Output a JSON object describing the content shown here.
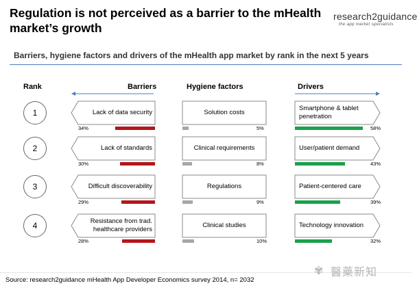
{
  "title": "Regulation is not perceived as a barrier to the mHealth market’s growth",
  "logo": {
    "name": "research2guidance",
    "tagline": "the app market specialists"
  },
  "chart_data": {
    "type": "table",
    "title": "Barriers, hygiene factors and drivers of the mHealth app market by rank in the next 5 years",
    "columns": {
      "rank": "Rank",
      "barriers": "Barriers",
      "hygiene": "Hygiene factors",
      "drivers": "Drivers"
    },
    "unit": "%",
    "rows": [
      {
        "rank": "1",
        "barrier": {
          "label": "Lack of data security",
          "value": 34,
          "pct": "34%"
        },
        "hygiene": {
          "label": "Solution costs",
          "value": 5,
          "pct": "5%"
        },
        "driver": {
          "label": "Smartphone & tablet penetration",
          "value": 58,
          "pct": "58%"
        }
      },
      {
        "rank": "2",
        "barrier": {
          "label": "Lack of standards",
          "value": 30,
          "pct": "30%"
        },
        "hygiene": {
          "label": "Clinical requirements",
          "value": 8,
          "pct": "8%"
        },
        "driver": {
          "label": "User/patient demand",
          "value": 43,
          "pct": "43%"
        }
      },
      {
        "rank": "3",
        "barrier": {
          "label": "Difficult discoverability",
          "value": 29,
          "pct": "29%"
        },
        "hygiene": {
          "label": "Regulations",
          "value": 9,
          "pct": "9%"
        },
        "driver": {
          "label": "Patient-centered care",
          "value": 39,
          "pct": "39%"
        }
      },
      {
        "rank": "4",
        "barrier": {
          "label": "Resistance from trad. healthcare providers",
          "value": 28,
          "pct": "28%"
        },
        "hygiene": {
          "label": "Clinical studies",
          "value": 10,
          "pct": "10%"
        },
        "driver": {
          "label": "Technology innovation",
          "value": 32,
          "pct": "32%"
        }
      }
    ],
    "colors": {
      "barrier": "#b3161c",
      "hygiene": "#a6a6a6",
      "driver": "#1aa14a",
      "arrow": "#4a7ebb"
    }
  },
  "source": "Source: research2guidance mHealth App Developer Economics survey 2014, n= 2032",
  "watermark": "醫藥新知"
}
